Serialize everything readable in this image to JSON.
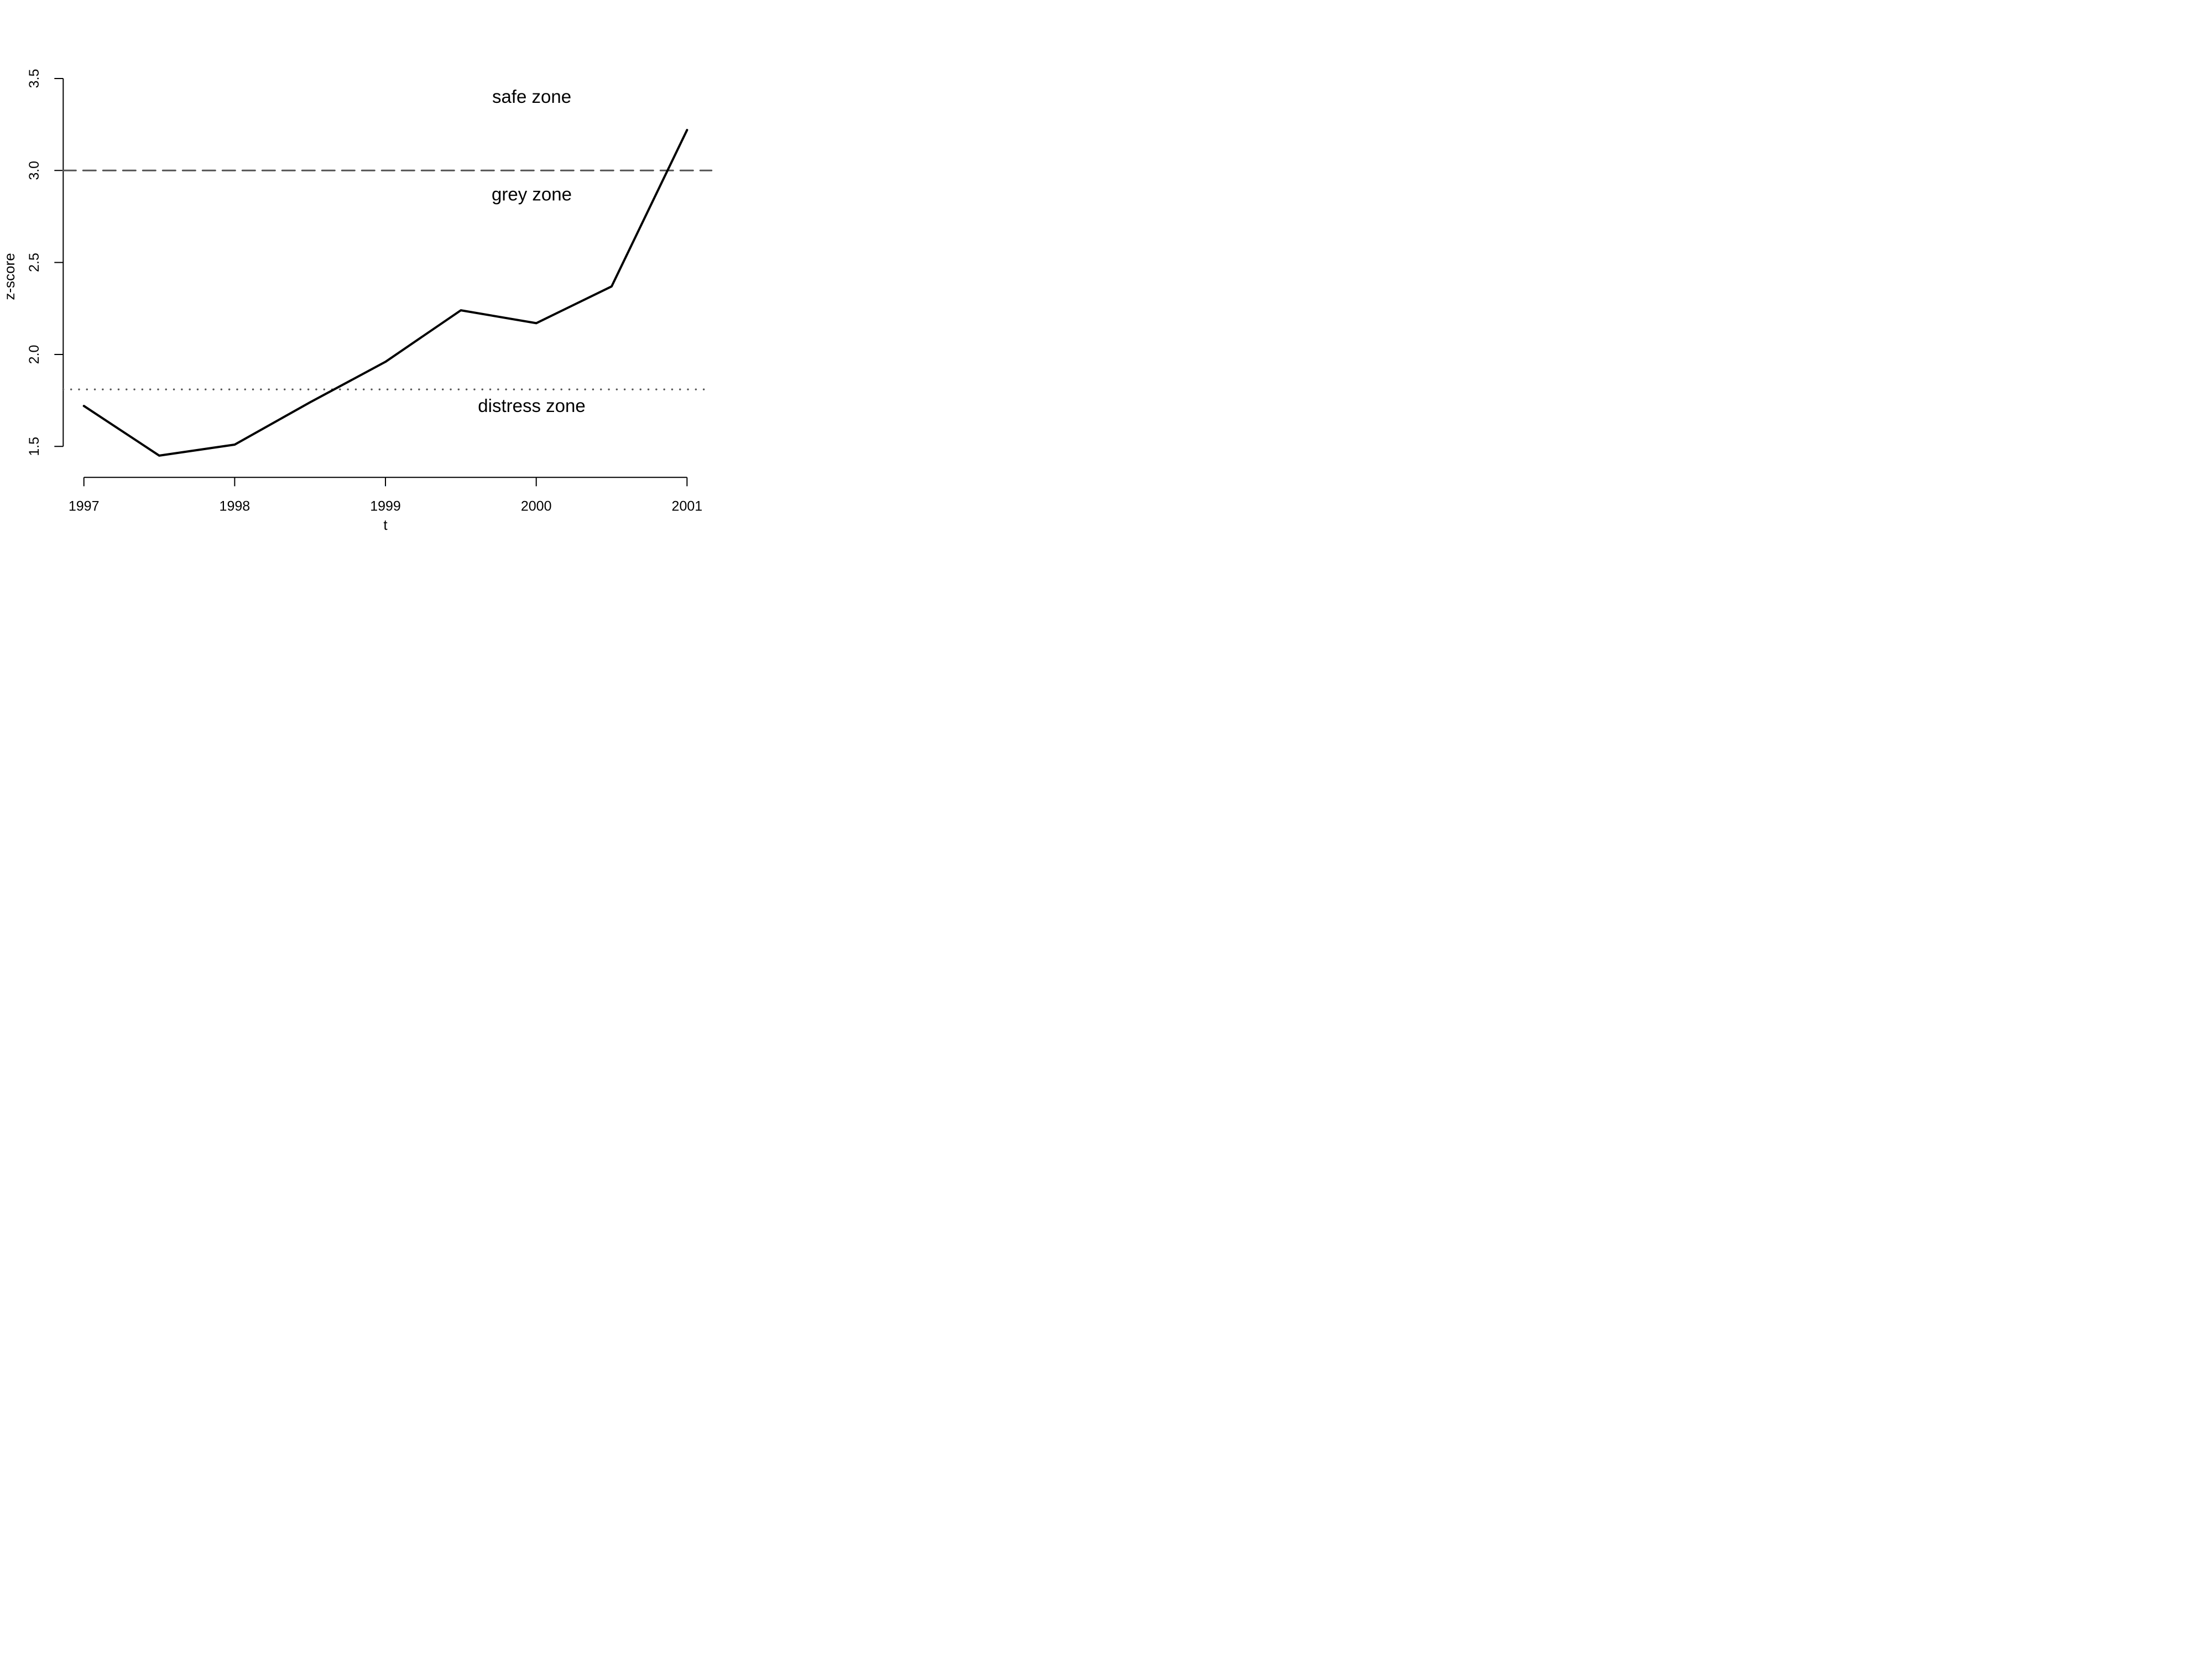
{
  "chart_data": {
    "type": "line",
    "title": "",
    "xlabel": "t",
    "ylabel": "z-score",
    "x": [
      1997,
      1997.5,
      1998,
      1998.5,
      1999,
      1999.5,
      2000,
      2000.5,
      2001
    ],
    "series": [
      {
        "name": "z-score",
        "values": [
          1.72,
          1.45,
          1.51,
          1.74,
          1.96,
          2.24,
          2.17,
          2.37,
          3.22
        ],
        "color": "#000000"
      }
    ],
    "x_ticks": [
      1997,
      1998,
      1999,
      2000,
      2001
    ],
    "y_ticks": [
      "1.5",
      "2.0",
      "2.5",
      "3.0",
      "3.5"
    ],
    "xlim": [
      1997,
      2001
    ],
    "ylim": [
      1.5,
      3.5
    ],
    "grid": false,
    "legend": "none",
    "axis_color": "#000000",
    "thresholds": [
      {
        "value": 3.0,
        "style": "dashed",
        "color": "#545454"
      },
      {
        "value": 1.81,
        "style": "dotted",
        "color": "#555555"
      }
    ],
    "annotations": [
      {
        "text": "safe zone",
        "x": 1999.97,
        "y": 3.4,
        "color": "#0000ff"
      },
      {
        "text": "grey zone",
        "x": 1999.97,
        "y": 2.87,
        "color": "#0000ff"
      },
      {
        "text": "distress zone",
        "x": 1999.97,
        "y": 1.72,
        "color": "#0000ff"
      }
    ]
  }
}
